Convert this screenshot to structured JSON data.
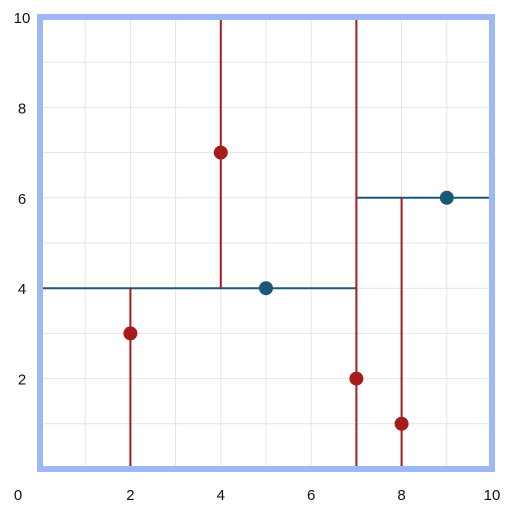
{
  "chart_data": {
    "type": "scatter",
    "title": "",
    "xlabel": "",
    "ylabel": "",
    "xlim": [
      0,
      10
    ],
    "ylim": [
      0,
      10
    ],
    "grid": true,
    "x_ticks": [
      0,
      2,
      4,
      6,
      8,
      10
    ],
    "y_ticks": [
      2,
      4,
      6,
      8,
      10
    ],
    "x_tick_labels": [
      "0",
      "2",
      "4",
      "6",
      "8",
      "10"
    ],
    "y_tick_labels": [
      "2",
      "4",
      "6",
      "8",
      "10"
    ],
    "red_points": [
      {
        "x": 2,
        "y": 3
      },
      {
        "x": 4,
        "y": 7
      },
      {
        "x": 7,
        "y": 2
      },
      {
        "x": 8,
        "y": 1
      }
    ],
    "blue_points": [
      {
        "x": 5,
        "y": 4
      },
      {
        "x": 9,
        "y": 6
      }
    ],
    "red_segments": [
      {
        "x1": 2,
        "y1": 0,
        "x2": 2,
        "y2": 4
      },
      {
        "x1": 4,
        "y1": 4,
        "x2": 4,
        "y2": 10
      },
      {
        "x1": 7,
        "y1": 0,
        "x2": 7,
        "y2": 10
      },
      {
        "x1": 8,
        "y1": 0,
        "x2": 8,
        "y2": 6
      }
    ],
    "blue_segments": [
      {
        "x1": 0,
        "y1": 4,
        "x2": 7,
        "y2": 4
      },
      {
        "x1": 7,
        "y1": 6,
        "x2": 10,
        "y2": 6
      }
    ],
    "colors": {
      "frame": "#9DB8F5",
      "red": "#A61C1C",
      "blue": "#1A5878",
      "grid": "#E4E4E4"
    }
  }
}
